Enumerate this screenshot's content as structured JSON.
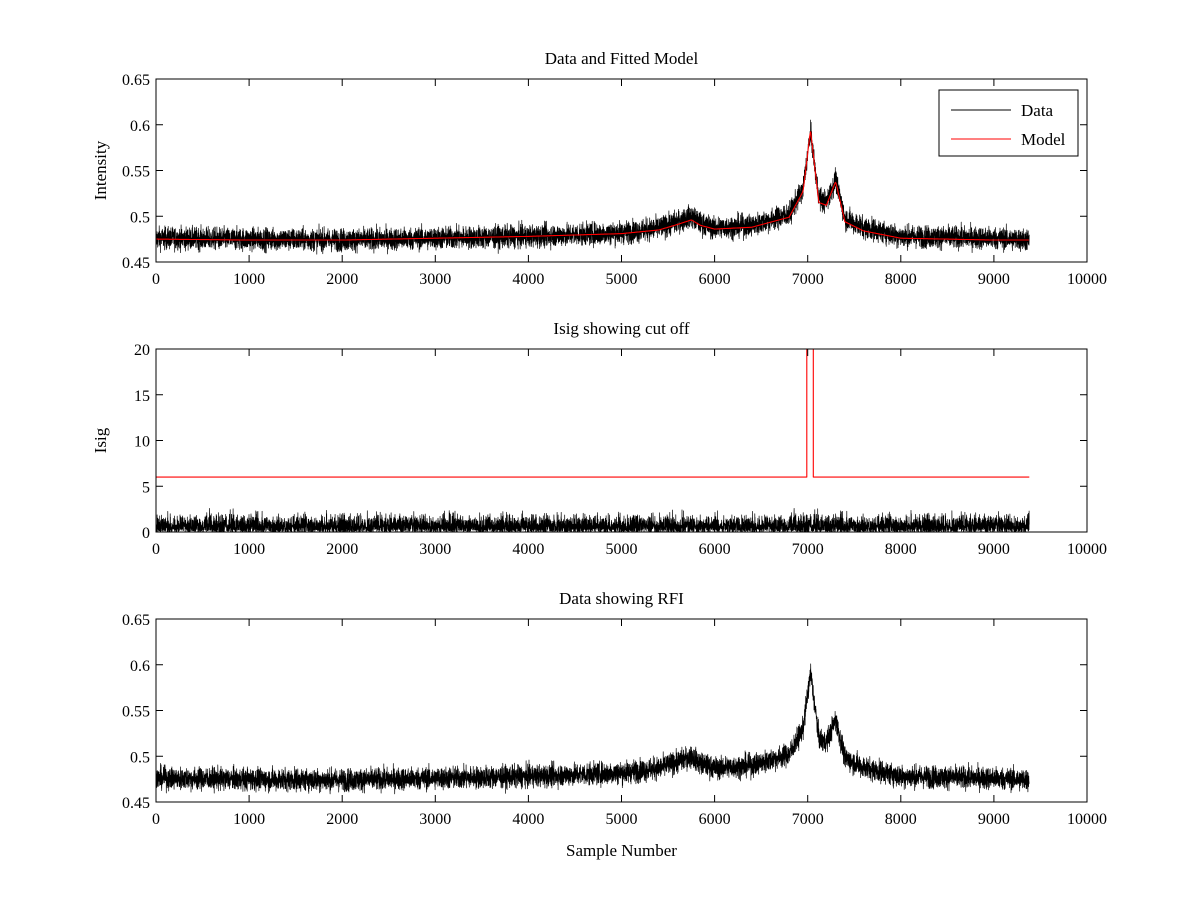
{
  "chart_data": [
    {
      "type": "line",
      "title": "Data and Fitted Model",
      "xlabel": "",
      "ylabel": "Intensity",
      "xlim": [
        0,
        10000
      ],
      "ylim": [
        0.45,
        0.65
      ],
      "xticks": [
        0,
        1000,
        2000,
        3000,
        4000,
        5000,
        6000,
        7000,
        8000,
        9000,
        10000
      ],
      "yticks": [
        0.45,
        0.5,
        0.55,
        0.6,
        0.65
      ],
      "ytick_labels": [
        "0.45",
        "0.5",
        "0.55",
        "0.6",
        "0.65"
      ],
      "legend": {
        "placement": "top-right",
        "entries": [
          "Data",
          "Model"
        ]
      },
      "series": [
        {
          "name": "Data",
          "color": "#000000",
          "kind": "noisy",
          "noise": 0.012,
          "x": [
            0,
            1000,
            2000,
            3000,
            4000,
            5000,
            5400,
            5600,
            5750,
            5850,
            6000,
            6400,
            6800,
            6950,
            7030,
            7120,
            7200,
            7300,
            7400,
            7600,
            8000,
            9000,
            9380
          ],
          "y": [
            0.476,
            0.475,
            0.474,
            0.476,
            0.478,
            0.482,
            0.487,
            0.494,
            0.5,
            0.492,
            0.487,
            0.49,
            0.502,
            0.53,
            0.592,
            0.52,
            0.515,
            0.54,
            0.498,
            0.488,
            0.478,
            0.476,
            0.474
          ]
        },
        {
          "name": "Model",
          "color": "#ff0000",
          "kind": "smooth",
          "noise": 0,
          "x": [
            0,
            1000,
            2000,
            3000,
            4000,
            5000,
            5400,
            5600,
            5750,
            5850,
            6000,
            6400,
            6800,
            6950,
            7030,
            7120,
            7200,
            7300,
            7400,
            7600,
            8000,
            9000,
            9380
          ],
          "y": [
            0.475,
            0.474,
            0.474,
            0.476,
            0.478,
            0.481,
            0.485,
            0.491,
            0.496,
            0.49,
            0.486,
            0.488,
            0.499,
            0.527,
            0.594,
            0.515,
            0.512,
            0.538,
            0.494,
            0.484,
            0.476,
            0.474,
            0.474
          ]
        }
      ]
    },
    {
      "type": "line",
      "title": "Isig showing cut off",
      "xlabel": "",
      "ylabel": "Isig",
      "xlim": [
        0,
        10000
      ],
      "ylim": [
        0,
        20
      ],
      "xticks": [
        0,
        1000,
        2000,
        3000,
        4000,
        5000,
        6000,
        7000,
        8000,
        9000,
        10000
      ],
      "yticks": [
        0,
        5,
        10,
        15,
        20
      ],
      "ytick_labels": [
        "0",
        "5",
        "10",
        "15",
        "20"
      ],
      "series": [
        {
          "name": "Isig",
          "color": "#000000",
          "kind": "abs-noise",
          "x_range": [
            0,
            9380
          ],
          "mean": 0.9,
          "max": 3.5
        },
        {
          "name": "Cut off",
          "color": "#ff0000",
          "kind": "step",
          "x": [
            0,
            6990,
            6990,
            7060,
            7060,
            9380
          ],
          "y": [
            6,
            6,
            20,
            20,
            6,
            6
          ]
        }
      ]
    },
    {
      "type": "line",
      "title": "Data showing RFI",
      "xlabel": "Sample Number",
      "ylabel": "",
      "xlim": [
        0,
        10000
      ],
      "ylim": [
        0.45,
        0.65
      ],
      "xticks": [
        0,
        1000,
        2000,
        3000,
        4000,
        5000,
        6000,
        7000,
        8000,
        9000,
        10000
      ],
      "yticks": [
        0.45,
        0.5,
        0.55,
        0.6,
        0.65
      ],
      "ytick_labels": [
        "0.45",
        "0.5",
        "0.55",
        "0.6",
        "0.65"
      ],
      "series": [
        {
          "name": "Data",
          "color": "#000000",
          "kind": "noisy",
          "noise": 0.012,
          "x": [
            0,
            1000,
            2000,
            3000,
            4000,
            5000,
            5400,
            5600,
            5750,
            5850,
            6000,
            6400,
            6800,
            6950,
            7030,
            7120,
            7200,
            7300,
            7400,
            7600,
            8000,
            9000,
            9380
          ],
          "y": [
            0.476,
            0.475,
            0.474,
            0.476,
            0.478,
            0.482,
            0.487,
            0.494,
            0.5,
            0.492,
            0.487,
            0.49,
            0.502,
            0.53,
            0.592,
            0.52,
            0.515,
            0.54,
            0.498,
            0.488,
            0.478,
            0.476,
            0.474
          ]
        }
      ]
    }
  ]
}
